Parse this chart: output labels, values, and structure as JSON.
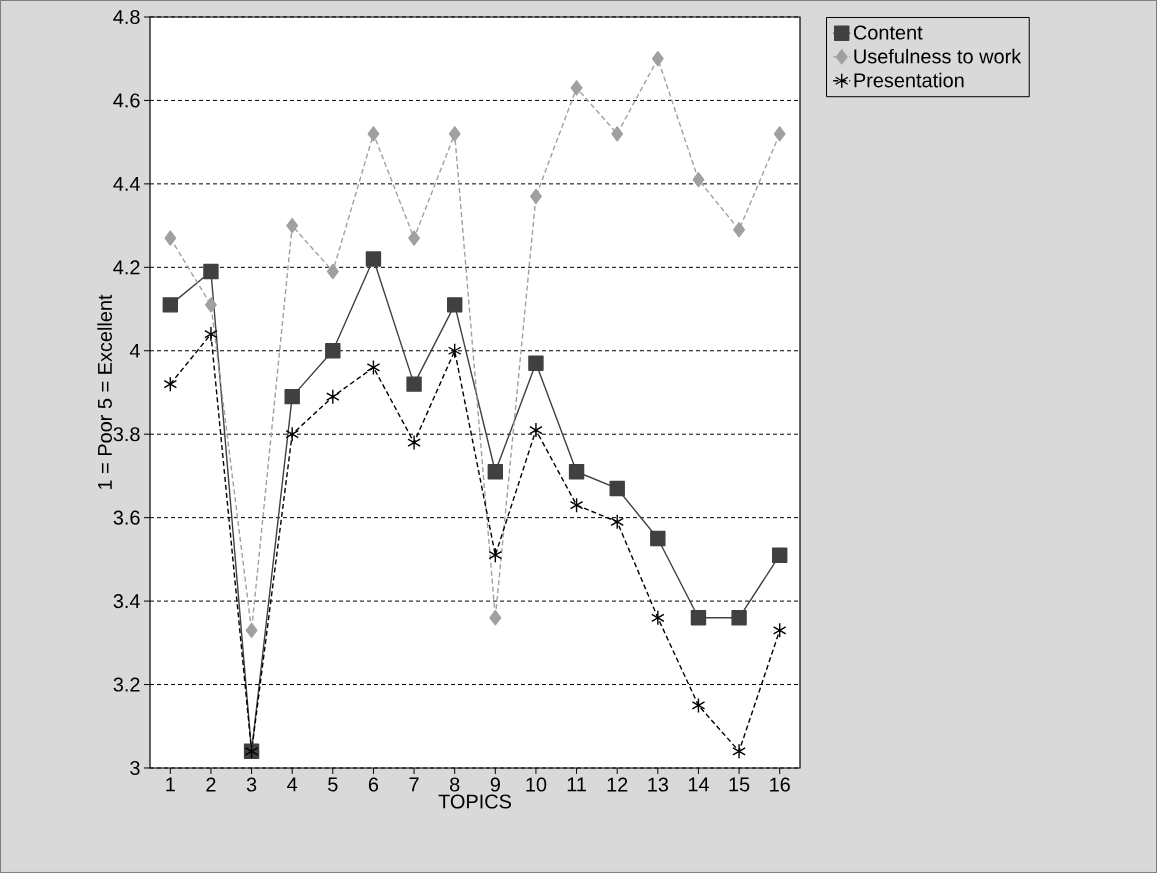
{
  "chart_data": {
    "type": "line",
    "xlabel": "TOPICS",
    "ylabel": "1 = Poor  5 = Excellent",
    "categories": [
      "1",
      "2",
      "3",
      "4",
      "5",
      "6",
      "7",
      "8",
      "9",
      "10",
      "11",
      "12",
      "13",
      "14",
      "15",
      "16"
    ],
    "series": [
      {
        "name": "Content",
        "color": "#404040",
        "marker": "square",
        "line_style": "solid",
        "values": [
          4.11,
          4.19,
          3.04,
          3.89,
          4.0,
          4.22,
          3.92,
          4.11,
          3.71,
          3.97,
          3.71,
          3.67,
          3.55,
          3.36,
          3.36,
          3.51
        ]
      },
      {
        "name": "Usefulness to work",
        "color": "#a0a0a0",
        "marker": "diamond",
        "line_style": "dashed",
        "values": [
          4.27,
          4.11,
          3.33,
          4.3,
          4.19,
          4.52,
          4.27,
          4.52,
          3.36,
          4.37,
          4.63,
          4.52,
          4.7,
          4.41,
          4.29,
          4.52
        ]
      },
      {
        "name": "Presentation",
        "color": "#000000",
        "marker": "cross",
        "line_style": "dashed",
        "values": [
          3.92,
          4.04,
          3.04,
          3.8,
          3.89,
          3.96,
          3.78,
          4.0,
          3.51,
          3.81,
          3.63,
          3.59,
          3.36,
          3.15,
          3.04,
          3.33
        ]
      }
    ],
    "ylim": [
      3,
      4.8
    ],
    "yticks": [
      3,
      3.2,
      3.4,
      3.6,
      3.8,
      4,
      4.2,
      4.4,
      4.6,
      4.8
    ],
    "grid": "y",
    "legend": "top right"
  }
}
